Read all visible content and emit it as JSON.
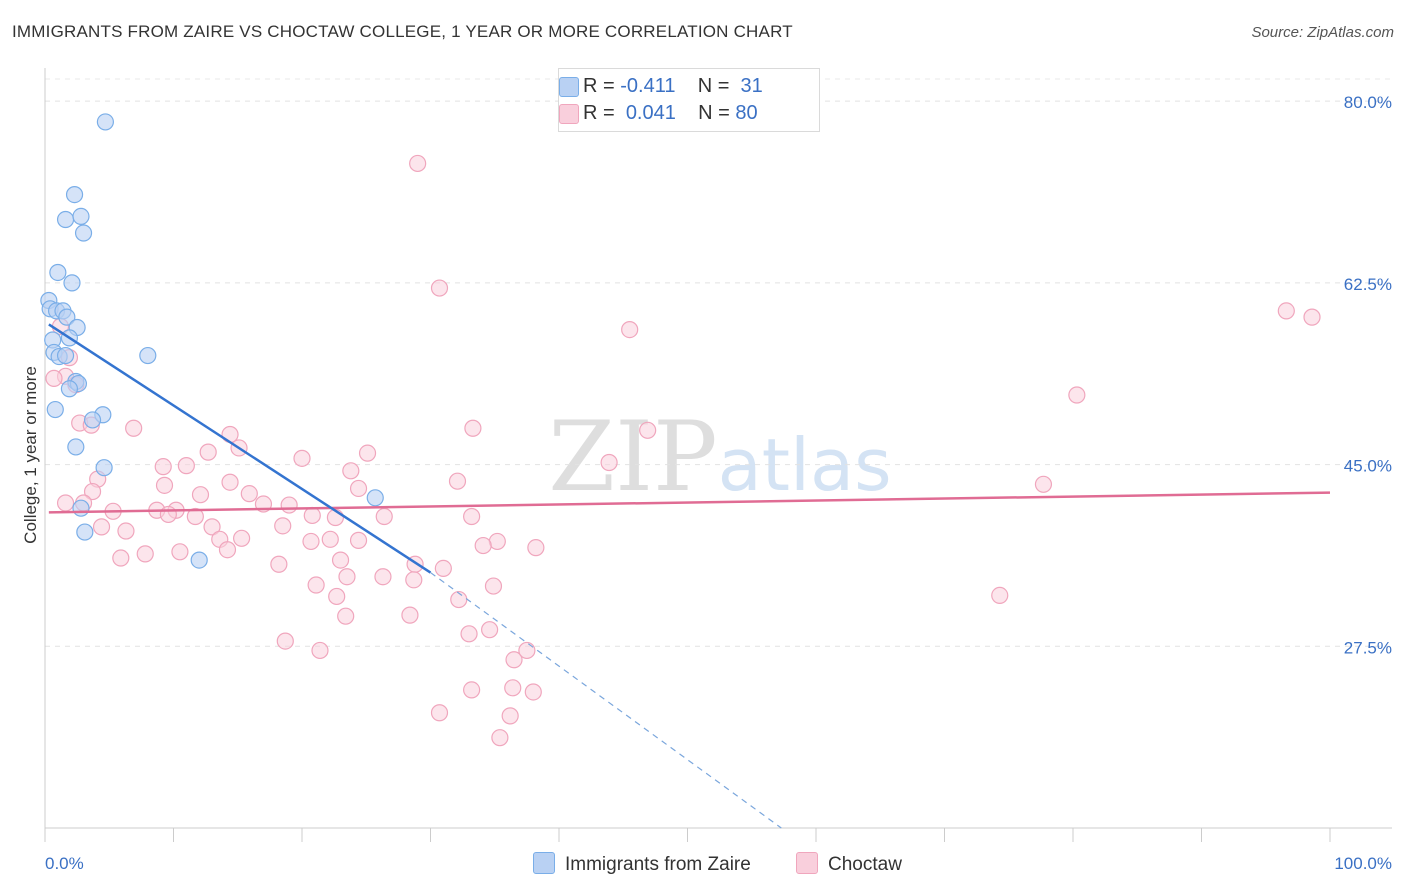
{
  "chart_data": {
    "type": "scatter",
    "title": "IMMIGRANTS FROM ZAIRE VS CHOCTAW COLLEGE, 1 YEAR OR MORE CORRELATION CHART",
    "source": "Source: ZipAtlas.com",
    "xlabel": "",
    "ylabel": "College, 1 year or more",
    "xlim": [
      0,
      100
    ],
    "ylim": [
      10,
      83
    ],
    "x_tick_labels": [
      "0.0%",
      "100.0%"
    ],
    "y_ticks": [
      27.5,
      45.0,
      62.5,
      80.0
    ],
    "y_tick_labels": [
      "27.5%",
      "45.0%",
      "62.5%",
      "80.0%"
    ],
    "grid": true,
    "watermark": "ZIPatlas",
    "legend_position": "top-center",
    "legend": [
      {
        "r_label": "R =",
        "r_value": "-0.411",
        "n_label": "N =",
        "n_value": "31"
      },
      {
        "r_label": "R =",
        "r_value": "0.041",
        "n_label": "N =",
        "n_value": "80"
      }
    ],
    "series": [
      {
        "name": "Immigrants from Zaire",
        "color": "#7aaee8",
        "fill": "#b9d1f3",
        "trend": {
          "x": [
            0.3,
            30
          ],
          "y": [
            58.5,
            34.6
          ]
        },
        "trend_extension": {
          "x": [
            30,
            57.3
          ],
          "y": [
            34.6,
            10.0
          ]
        },
        "points": [
          {
            "x": 4.7,
            "y": 78.0
          },
          {
            "x": 2.3,
            "y": 71.0
          },
          {
            "x": 1.6,
            "y": 68.6
          },
          {
            "x": 2.8,
            "y": 68.9
          },
          {
            "x": 3.0,
            "y": 67.3
          },
          {
            "x": 1.0,
            "y": 63.5
          },
          {
            "x": 2.1,
            "y": 62.5
          },
          {
            "x": 0.3,
            "y": 60.8
          },
          {
            "x": 0.4,
            "y": 60.0
          },
          {
            "x": 0.9,
            "y": 59.8
          },
          {
            "x": 1.4,
            "y": 59.8
          },
          {
            "x": 1.7,
            "y": 59.2
          },
          {
            "x": 2.5,
            "y": 58.2
          },
          {
            "x": 0.6,
            "y": 57.0
          },
          {
            "x": 1.9,
            "y": 57.2
          },
          {
            "x": 0.7,
            "y": 55.8
          },
          {
            "x": 1.1,
            "y": 55.4
          },
          {
            "x": 1.6,
            "y": 55.5
          },
          {
            "x": 8.0,
            "y": 55.5
          },
          {
            "x": 2.4,
            "y": 53.0
          },
          {
            "x": 2.6,
            "y": 52.8
          },
          {
            "x": 1.9,
            "y": 52.3
          },
          {
            "x": 0.8,
            "y": 50.3
          },
          {
            "x": 4.5,
            "y": 49.8
          },
          {
            "x": 3.7,
            "y": 49.3
          },
          {
            "x": 2.4,
            "y": 46.7
          },
          {
            "x": 4.6,
            "y": 44.7
          },
          {
            "x": 2.8,
            "y": 40.8
          },
          {
            "x": 3.1,
            "y": 38.5
          },
          {
            "x": 12.0,
            "y": 35.8
          },
          {
            "x": 25.7,
            "y": 41.8
          }
        ]
      },
      {
        "name": "Choctaw",
        "color": "#f0a6bd",
        "fill": "#f9cfdc",
        "trend": {
          "x": [
            0.3,
            100
          ],
          "y": [
            40.4,
            42.3
          ]
        },
        "points": [
          {
            "x": 29.0,
            "y": 74.0
          },
          {
            "x": 30.7,
            "y": 62.0
          },
          {
            "x": 45.5,
            "y": 58.0
          },
          {
            "x": 96.6,
            "y": 59.8
          },
          {
            "x": 98.6,
            "y": 59.2
          },
          {
            "x": 80.3,
            "y": 51.7
          },
          {
            "x": 1.2,
            "y": 58.3
          },
          {
            "x": 1.9,
            "y": 55.3
          },
          {
            "x": 1.6,
            "y": 53.5
          },
          {
            "x": 2.4,
            "y": 52.7
          },
          {
            "x": 0.7,
            "y": 53.3
          },
          {
            "x": 2.7,
            "y": 49.0
          },
          {
            "x": 3.6,
            "y": 48.8
          },
          {
            "x": 6.9,
            "y": 48.5
          },
          {
            "x": 33.3,
            "y": 48.5
          },
          {
            "x": 46.9,
            "y": 48.3
          },
          {
            "x": 14.4,
            "y": 47.9
          },
          {
            "x": 15.1,
            "y": 46.6
          },
          {
            "x": 12.7,
            "y": 46.2
          },
          {
            "x": 25.1,
            "y": 46.1
          },
          {
            "x": 20.0,
            "y": 45.6
          },
          {
            "x": 43.9,
            "y": 45.2
          },
          {
            "x": 9.2,
            "y": 44.8
          },
          {
            "x": 11.0,
            "y": 44.9
          },
          {
            "x": 23.8,
            "y": 44.4
          },
          {
            "x": 4.1,
            "y": 43.6
          },
          {
            "x": 14.4,
            "y": 43.3
          },
          {
            "x": 32.1,
            "y": 43.4
          },
          {
            "x": 77.7,
            "y": 43.1
          },
          {
            "x": 9.3,
            "y": 43.0
          },
          {
            "x": 24.4,
            "y": 42.7
          },
          {
            "x": 3.7,
            "y": 42.4
          },
          {
            "x": 12.1,
            "y": 42.1
          },
          {
            "x": 15.9,
            "y": 42.2
          },
          {
            "x": 1.6,
            "y": 41.3
          },
          {
            "x": 3.0,
            "y": 41.3
          },
          {
            "x": 19.0,
            "y": 41.1
          },
          {
            "x": 17.0,
            "y": 41.2
          },
          {
            "x": 8.7,
            "y": 40.6
          },
          {
            "x": 10.2,
            "y": 40.6
          },
          {
            "x": 9.6,
            "y": 40.2
          },
          {
            "x": 5.3,
            "y": 40.5
          },
          {
            "x": 11.7,
            "y": 40.0
          },
          {
            "x": 20.8,
            "y": 40.1
          },
          {
            "x": 22.6,
            "y": 39.9
          },
          {
            "x": 26.4,
            "y": 40.0
          },
          {
            "x": 33.2,
            "y": 40.0
          },
          {
            "x": 18.5,
            "y": 39.1
          },
          {
            "x": 13.0,
            "y": 39.0
          },
          {
            "x": 6.3,
            "y": 38.6
          },
          {
            "x": 4.4,
            "y": 39.0
          },
          {
            "x": 15.3,
            "y": 37.9
          },
          {
            "x": 13.6,
            "y": 37.8
          },
          {
            "x": 22.2,
            "y": 37.8
          },
          {
            "x": 20.7,
            "y": 37.6
          },
          {
            "x": 24.4,
            "y": 37.7
          },
          {
            "x": 35.2,
            "y": 37.6
          },
          {
            "x": 34.1,
            "y": 37.2
          },
          {
            "x": 38.2,
            "y": 37.0
          },
          {
            "x": 10.5,
            "y": 36.6
          },
          {
            "x": 7.8,
            "y": 36.4
          },
          {
            "x": 14.2,
            "y": 36.8
          },
          {
            "x": 5.9,
            "y": 36.0
          },
          {
            "x": 23.0,
            "y": 35.8
          },
          {
            "x": 18.2,
            "y": 35.4
          },
          {
            "x": 28.8,
            "y": 35.4
          },
          {
            "x": 31.0,
            "y": 35.0
          },
          {
            "x": 23.5,
            "y": 34.2
          },
          {
            "x": 26.3,
            "y": 34.2
          },
          {
            "x": 28.7,
            "y": 33.9
          },
          {
            "x": 34.9,
            "y": 33.3
          },
          {
            "x": 21.1,
            "y": 33.4
          },
          {
            "x": 22.7,
            "y": 32.3
          },
          {
            "x": 23.4,
            "y": 30.4
          },
          {
            "x": 34.6,
            "y": 29.1
          },
          {
            "x": 74.3,
            "y": 32.4
          },
          {
            "x": 32.2,
            "y": 32.0
          },
          {
            "x": 28.4,
            "y": 30.5
          },
          {
            "x": 33.0,
            "y": 28.7
          },
          {
            "x": 18.7,
            "y": 28.0
          }
        ]
      }
    ],
    "extra_choctaw_points": [
      {
        "x": 21.4,
        "y": 27.1
      },
      {
        "x": 36.5,
        "y": 26.2
      },
      {
        "x": 37.5,
        "y": 27.1
      },
      {
        "x": 33.2,
        "y": 23.3
      },
      {
        "x": 36.4,
        "y": 23.5
      },
      {
        "x": 38.0,
        "y": 23.1
      },
      {
        "x": 30.7,
        "y": 21.1
      },
      {
        "x": 36.2,
        "y": 20.8
      },
      {
        "x": 35.4,
        "y": 18.7
      }
    ]
  },
  "bottom_legend": [
    {
      "label": "Immigrants from Zaire"
    },
    {
      "label": "Choctaw"
    }
  ]
}
